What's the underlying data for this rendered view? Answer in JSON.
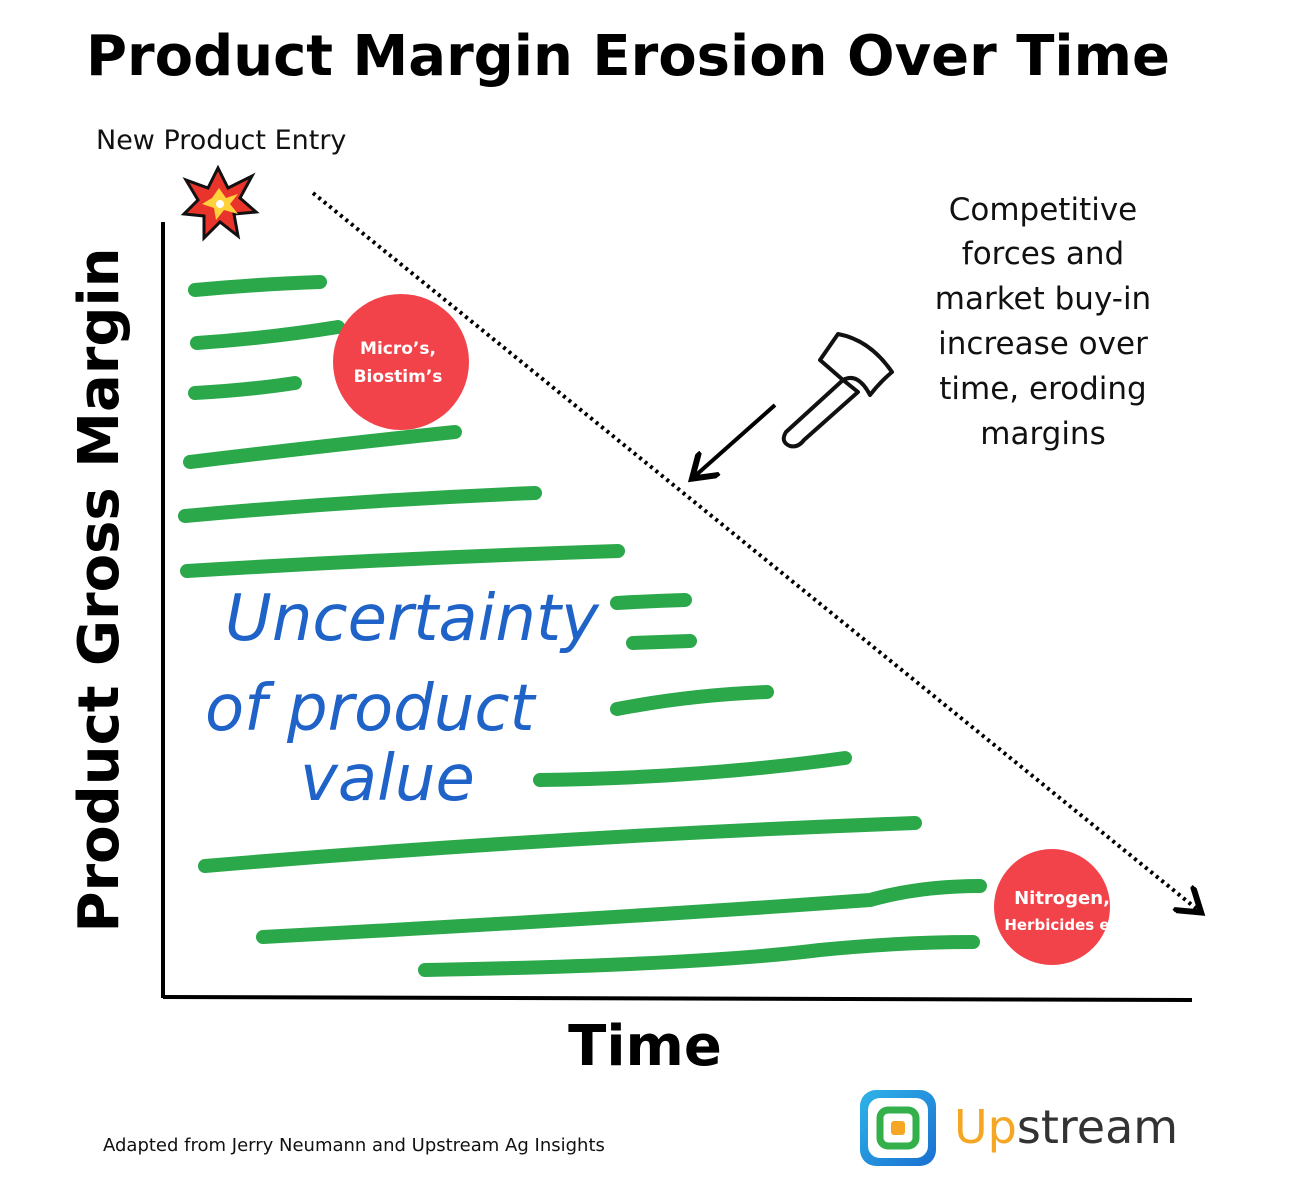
{
  "header": {
    "title": "Product Margin Erosion Over Time"
  },
  "entry_label": "New Product Entry",
  "y_axis_label": "Product Gross Margin",
  "x_axis_label": "Time",
  "annotation": {
    "lines": [
      "Competitive",
      "forces and",
      "market buy-in",
      "increase over",
      "time, eroding",
      "margins"
    ]
  },
  "handwritten": {
    "lines": [
      "Uncertainty",
      "of product",
      "value"
    ]
  },
  "circles": [
    {
      "lines": [
        "Micro’s,",
        "Biostim’s"
      ]
    },
    {
      "lines": [
        "Nitrogen,",
        "Herbicides etc"
      ]
    }
  ],
  "footer": {
    "source": "Adapted from Jerry Neumann and Upstream Ag Insights"
  },
  "logo": {
    "prefix": "Up",
    "suffix": "stream"
  }
}
